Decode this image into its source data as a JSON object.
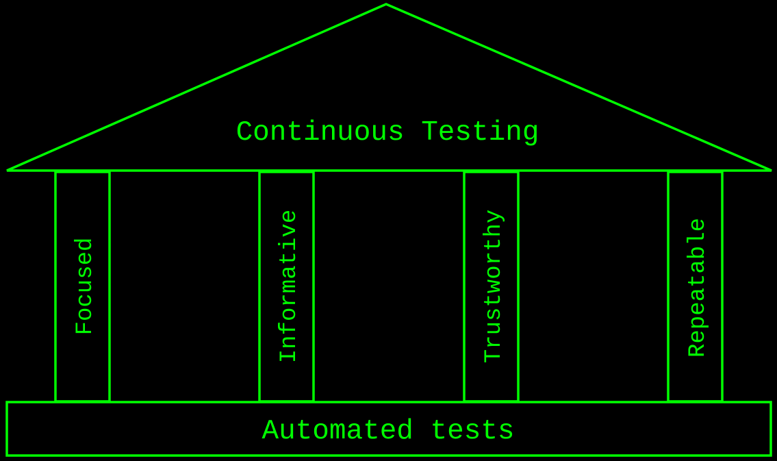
{
  "diagram": {
    "roof": {
      "label": "Continuous Testing"
    },
    "pillars": [
      {
        "label": "Focused"
      },
      {
        "label": "Informative"
      },
      {
        "label": "Trustworthy"
      },
      {
        "label": "Repeatable"
      }
    ],
    "base": {
      "label": "Automated tests"
    },
    "colors": {
      "line": "#00ff00",
      "background": "#000000"
    }
  }
}
